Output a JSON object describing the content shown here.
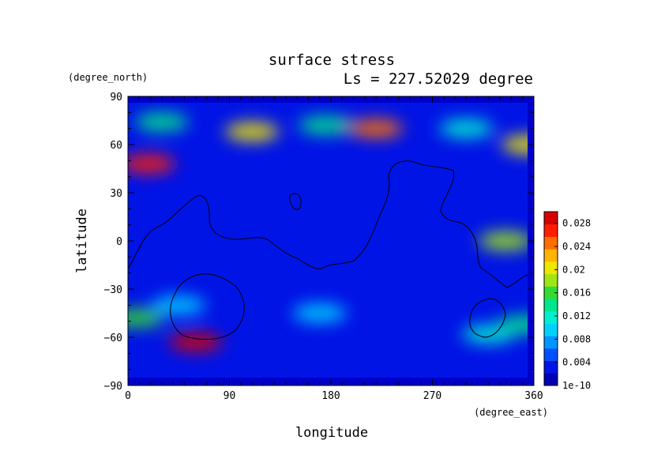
{
  "chart_data": {
    "type": "heatmap",
    "title": "surface stress",
    "subtitle": "Ls = 227.52029 degree",
    "xlabel": "longitude",
    "ylabel": "latitude",
    "x_unit": "(degree_east)",
    "y_unit": "(degree_north)",
    "xlim": [
      0,
      360
    ],
    "ylim": [
      -90,
      90
    ],
    "x_ticks": [
      "0",
      "90",
      "180",
      "270",
      "360"
    ],
    "y_ticks": [
      "90",
      "60",
      "30",
      "0",
      "−30",
      "−60",
      "−90"
    ],
    "colorbar": {
      "min_label": "1e-10",
      "labels": [
        "0.028",
        "0.024",
        "0.02",
        "0.016",
        "0.012",
        "0.008",
        "0.004",
        "1e-10"
      ],
      "range": [
        0,
        0.03
      ],
      "colors": [
        "#0000b4",
        "#0014e6",
        "#0050ff",
        "#0096ff",
        "#00d2ff",
        "#00f0d2",
        "#00e68c",
        "#32dc32",
        "#a0e614",
        "#f0e600",
        "#ffb400",
        "#ff6e00",
        "#ff1e00",
        "#d70000"
      ]
    },
    "background_value": 0.004,
    "features": [
      {
        "label": "north polar band",
        "lon": 175,
        "lat": 72,
        "value": 0.014
      },
      {
        "label": "north band max",
        "lon": 220,
        "lat": 70,
        "value": 0.024
      },
      {
        "label": "north band",
        "lon": 110,
        "lat": 68,
        "value": 0.02
      },
      {
        "label": "north band",
        "lon": 30,
        "lat": 74,
        "value": 0.014
      },
      {
        "label": "north band",
        "lon": 300,
        "lat": 70,
        "value": 0.012
      },
      {
        "label": "west spot",
        "lon": 18,
        "lat": 48,
        "value": 0.026
      },
      {
        "label": "east edge",
        "lon": 355,
        "lat": 60,
        "value": 0.02
      },
      {
        "label": "east equator",
        "lon": 335,
        "lat": 0,
        "value": 0.018
      },
      {
        "label": "southern max",
        "lon": 60,
        "lat": -63,
        "value": 0.028
      },
      {
        "label": "south band",
        "lon": 45,
        "lat": -40,
        "value": 0.01
      },
      {
        "label": "south band",
        "lon": 8,
        "lat": -48,
        "value": 0.016
      },
      {
        "label": "south east",
        "lon": 320,
        "lat": -58,
        "value": 0.011
      },
      {
        "label": "south east edge",
        "lon": 352,
        "lat": -52,
        "value": 0.013
      },
      {
        "label": "south middle",
        "lon": 170,
        "lat": -45,
        "value": 0.009
      }
    ]
  }
}
